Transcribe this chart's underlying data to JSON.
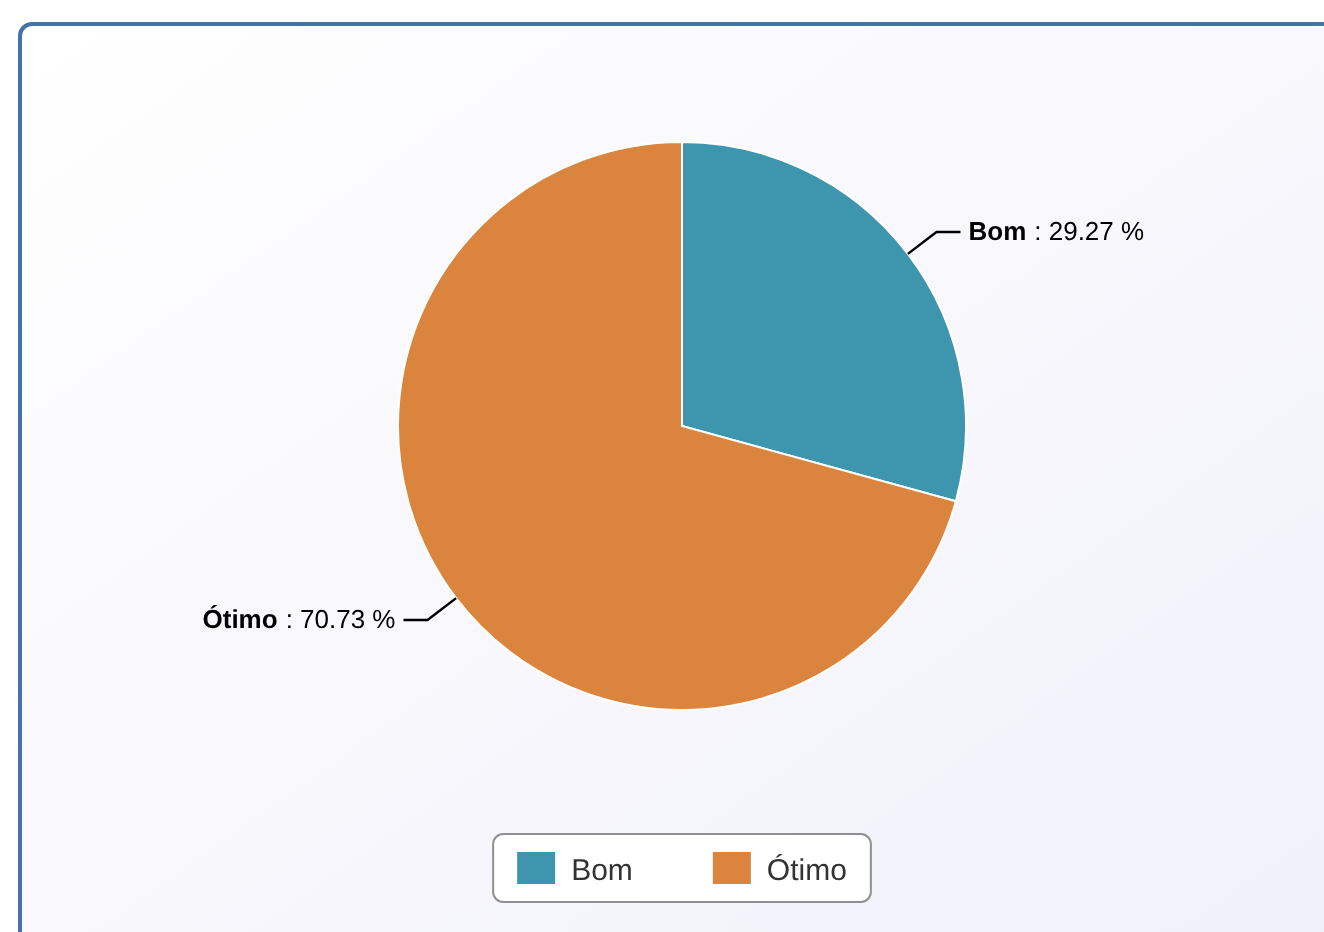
{
  "chart_data": {
    "type": "pie",
    "categories": [
      "Bom",
      "Ótimo"
    ],
    "values": [
      29.27,
      70.73
    ],
    "colors": [
      "#3d96ae",
      "#db843d"
    ],
    "value_labels": [
      ": 29.27 %",
      ": 70.73 %"
    ],
    "legend": "bottom"
  }
}
